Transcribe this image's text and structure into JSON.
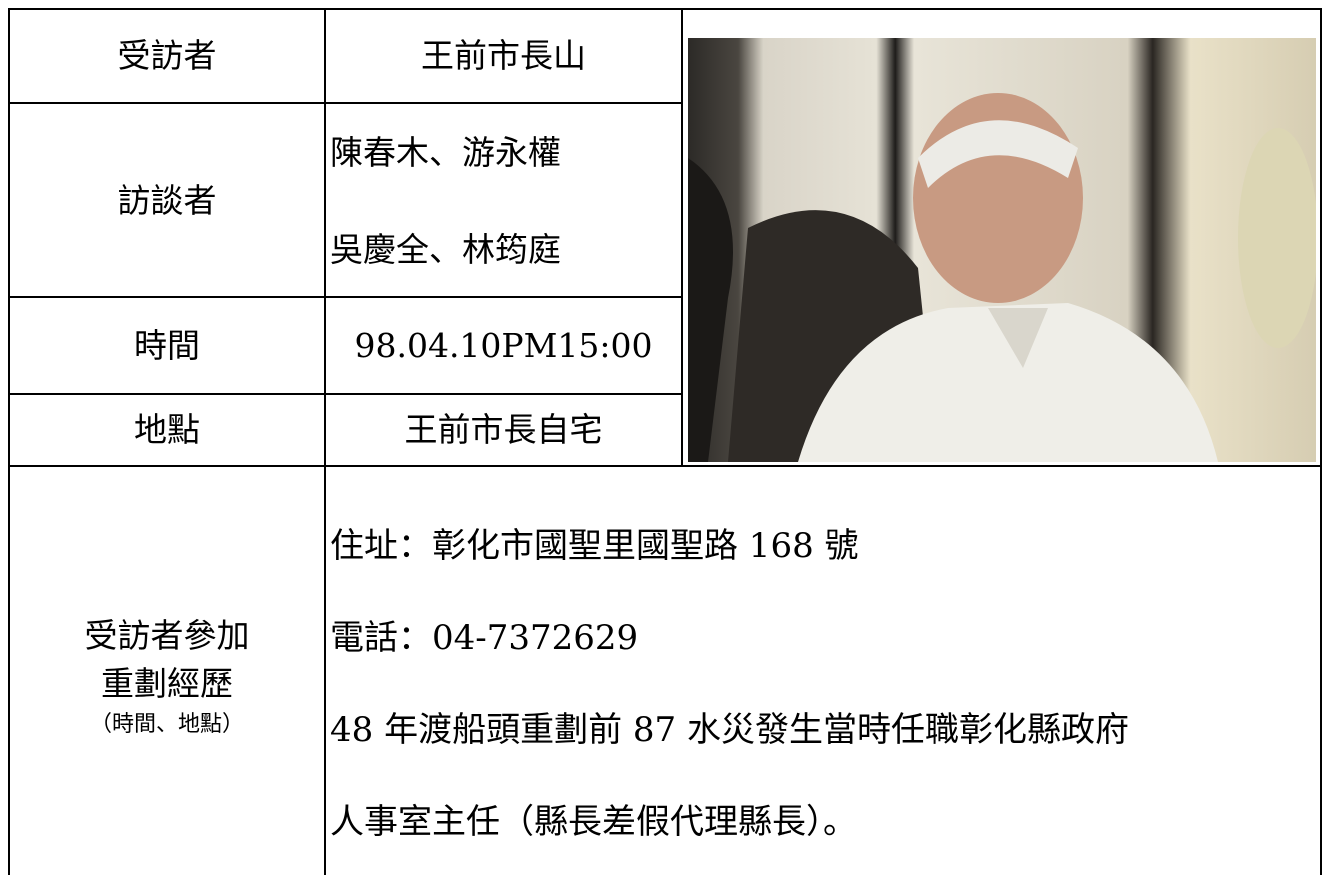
{
  "table": {
    "rows": [
      {
        "label": [
          "受訪者"
        ],
        "lines": [
          "王前市長山"
        ]
      },
      {
        "label": [
          "訪談者"
        ],
        "lines": [
          "陳春木、游永權",
          "吳慶全、林筠庭"
        ]
      },
      {
        "label": [
          "時間"
        ],
        "lines": [
          "98.04.10PM15:00"
        ]
      },
      {
        "label": [
          "地點"
        ],
        "lines": [
          "王前市長自宅"
        ]
      },
      {
        "label": [
          "受訪者參加",
          "重劃經歷"
        ],
        "note": "（時間、地點）",
        "lines": [
          "住址：彰化市國聖里國聖路 168 號",
          "電話：04-7372629",
          "48 年渡船頭重劃前 87 水災發生當時任職彰化縣政府",
          "人事室主任（縣長差假代理縣長）。"
        ]
      }
    ]
  }
}
